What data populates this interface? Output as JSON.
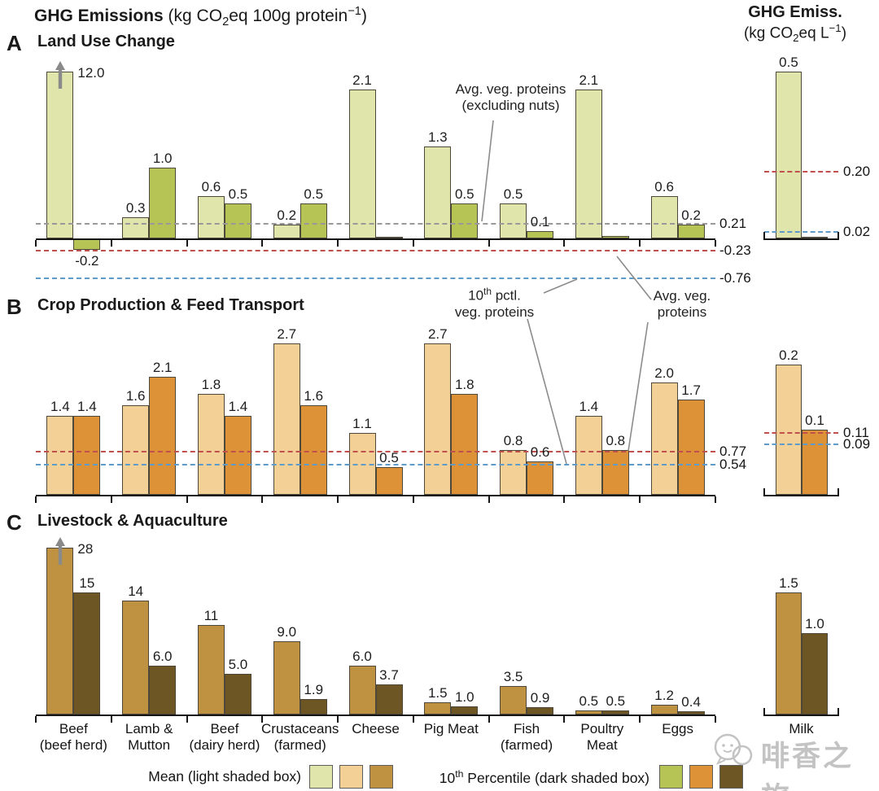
{
  "title": {
    "main_bold": "GHG Emissions",
    "main_unit_html": " (kg CO<sub>2</sub>eq 100g protein<sup>−1</sup>)",
    "right_bold": "GHG Emiss.",
    "right_unit_html": "(kg CO<sub>2</sub>eq L<sup>−1</sup>)"
  },
  "categories_display": [
    "Beef\n(beef herd)",
    "Lamb &\nMutton",
    "Beef\n(dairy herd)",
    "Crustaceans\n(farmed)",
    "Cheese",
    "Pig Meat",
    "Fish\n(farmed)",
    "Poultry\nMeat",
    "Eggs"
  ],
  "milk_category_label": "Milk",
  "annotations": {
    "avg_excl_nuts": "Avg. veg. proteins\n(excluding nuts)",
    "pctl10_html": "10<sup>th</sup> pctl.<br>veg. proteins",
    "avg_html": "Avg. veg.<br>proteins"
  },
  "legend": {
    "mean_label": "Mean (light shaded box)",
    "p10_label_html": "10<sup>th</sup> Percentile (dark shaded box)",
    "mean_colors": [
      "#dfe5ab",
      "#f3d096",
      "#bf9242"
    ],
    "p10_colors": [
      "#b6c355",
      "#de9238",
      "#6d5624"
    ]
  },
  "watermark": "啡香之旅",
  "chart_data": [
    {
      "id": "A",
      "panel_label": "A",
      "type": "bar",
      "title": "Land Use Change",
      "unit": "kg CO2eq 100g protein-1",
      "ylim": [
        -0.8,
        2.4
      ],
      "categories": [
        "Beef (beef herd)",
        "Lamb & Mutton",
        "Beef (dairy herd)",
        "Crustaceans (farmed)",
        "Cheese",
        "Pig Meat",
        "Fish (farmed)",
        "Poultry Meat",
        "Eggs"
      ],
      "colors": {
        "mean": "#dfe5ab",
        "p10": "#b6c355"
      },
      "series": [
        {
          "name": "Mean",
          "values": [
            12.0,
            0.3,
            0.6,
            0.2,
            2.1,
            1.3,
            0.5,
            2.1,
            0.6
          ],
          "labels": [
            "12.0",
            "0.3",
            "0.6",
            "0.2",
            "2.1",
            "1.3",
            "0.5",
            "2.1",
            "0.6"
          ],
          "truncated": [
            0
          ]
        },
        {
          "name": "10th Percentile",
          "values": [
            -0.2,
            1.0,
            0.5,
            0.5,
            0.02,
            0.5,
            0.1,
            0.04,
            0.2
          ],
          "labels": [
            "-0.2",
            "1.0",
            "0.5",
            "0.5",
            "",
            "0.5",
            "0.1",
            "",
            "0.2"
          ],
          "truncated": []
        }
      ],
      "ref_lines": [
        {
          "name": "Avg. veg. proteins (excluding nuts)",
          "label": "0.21",
          "value": 0.21,
          "color": "#999999"
        },
        {
          "name": "Avg. veg. proteins",
          "label": "-0.23",
          "value": -0.23,
          "color": "#c0504d"
        },
        {
          "name": "10th pctl. veg. proteins",
          "label": "-0.76",
          "value": -0.76,
          "color": "#5f9bc8"
        }
      ],
      "milk": {
        "unit": "kg CO2eq L-1",
        "series": [
          {
            "name": "Mean",
            "values": [
              0.5
            ],
            "labels": [
              "0.5"
            ],
            "truncated": []
          },
          {
            "name": "10th Percentile",
            "values": [
              0.005
            ],
            "labels": [
              ""
            ],
            "truncated": []
          }
        ],
        "ref_lines": [
          {
            "label": "0.20",
            "value": 0.2,
            "color": "#c0504d"
          },
          {
            "label": "0.02",
            "value": 0.02,
            "color": "#5f9bc8"
          }
        ]
      }
    },
    {
      "id": "B",
      "panel_label": "B",
      "type": "bar",
      "title": "Crop Production & Feed Transport",
      "unit": "kg CO2eq 100g protein-1",
      "ylim": [
        0,
        2.9
      ],
      "categories": [
        "Beef (beef herd)",
        "Lamb & Mutton",
        "Beef (dairy herd)",
        "Crustaceans (farmed)",
        "Cheese",
        "Pig Meat",
        "Fish (farmed)",
        "Poultry Meat",
        "Eggs"
      ],
      "colors": {
        "mean": "#f3d096",
        "p10": "#de9238"
      },
      "series": [
        {
          "name": "Mean",
          "values": [
            1.4,
            1.6,
            1.8,
            2.7,
            1.1,
            2.7,
            0.8,
            1.4,
            2.0
          ],
          "labels": [
            "1.4",
            "1.6",
            "1.8",
            "2.7",
            "1.1",
            "2.7",
            "0.8",
            "1.4",
            "2.0"
          ],
          "truncated": []
        },
        {
          "name": "10th Percentile",
          "values": [
            1.4,
            2.1,
            1.4,
            1.6,
            0.5,
            1.8,
            0.6,
            0.8,
            1.7
          ],
          "labels": [
            "1.4",
            "2.1",
            "1.4",
            "1.6",
            "0.5",
            "1.8",
            "0.6",
            "0.8",
            "1.7"
          ],
          "truncated": []
        }
      ],
      "ref_lines": [
        {
          "name": "Avg. veg. proteins",
          "label": "0.77",
          "value": 0.77,
          "color": "#c0504d"
        },
        {
          "name": "10th pctl. veg. proteins",
          "label": "0.54",
          "value": 0.54,
          "color": "#5f9bc8"
        }
      ],
      "milk": {
        "unit": "kg CO2eq L-1",
        "series": [
          {
            "name": "Mean",
            "values": [
              0.2
            ],
            "labels": [
              "0.2"
            ],
            "truncated": []
          },
          {
            "name": "10th Percentile",
            "values": [
              0.1
            ],
            "labels": [
              "0.1"
            ],
            "truncated": []
          }
        ],
        "ref_lines": [
          {
            "label": "0.11",
            "value": 0.11,
            "color": "#c0504d"
          },
          {
            "label": "0.09",
            "value": 0.09,
            "color": "#5f9bc8"
          }
        ]
      }
    },
    {
      "id": "C",
      "panel_label": "C",
      "type": "bar",
      "title": "Livestock & Aquaculture",
      "unit": "kg CO2eq 100g protein-1",
      "ylim": [
        0,
        21
      ],
      "categories": [
        "Beef (beef herd)",
        "Lamb & Mutton",
        "Beef (dairy herd)",
        "Crustaceans (farmed)",
        "Cheese",
        "Pig Meat",
        "Fish (farmed)",
        "Poultry Meat",
        "Eggs"
      ],
      "colors": {
        "mean": "#bf9242",
        "p10": "#6d5624"
      },
      "series": [
        {
          "name": "Mean",
          "values": [
            28,
            14,
            11,
            9.0,
            6.0,
            1.5,
            3.5,
            0.5,
            1.2
          ],
          "labels": [
            "28",
            "14",
            "11",
            "9.0",
            "6.0",
            "1.5",
            "3.5",
            "0.5",
            "1.2"
          ],
          "truncated": [
            0
          ]
        },
        {
          "name": "10th Percentile",
          "values": [
            15,
            6.0,
            5.0,
            1.9,
            3.7,
            1.0,
            0.9,
            0.5,
            0.4
          ],
          "labels": [
            "15",
            "6.0",
            "5.0",
            "1.9",
            "3.7",
            "1.0",
            "0.9",
            "0.5",
            "0.4"
          ],
          "truncated": []
        }
      ],
      "ref_lines": [],
      "milk": {
        "unit": "kg CO2eq L-1",
        "series": [
          {
            "name": "Mean",
            "values": [
              1.5
            ],
            "labels": [
              "1.5"
            ],
            "truncated": []
          },
          {
            "name": "10th Percentile",
            "values": [
              1.0
            ],
            "labels": [
              "1.0"
            ],
            "truncated": []
          }
        ],
        "ref_lines": []
      }
    }
  ]
}
